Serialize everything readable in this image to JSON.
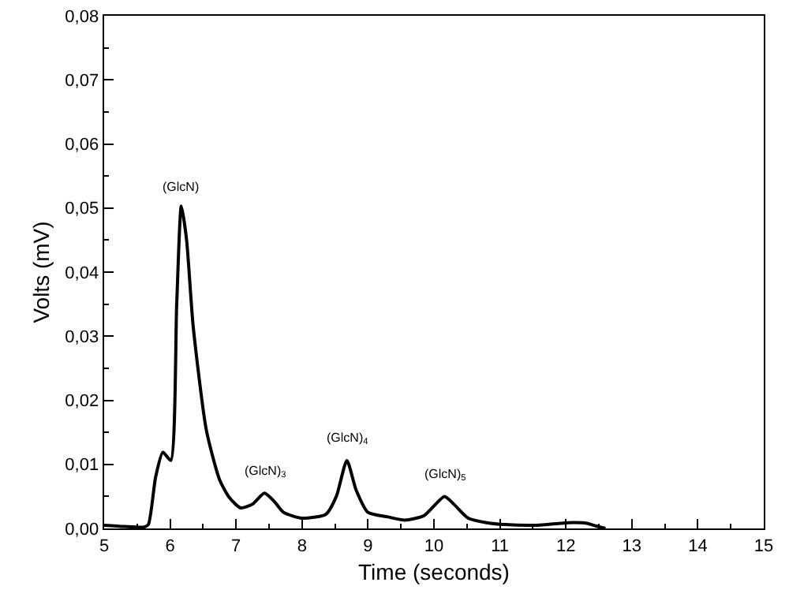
{
  "chart_data": {
    "type": "line",
    "xlabel": "Time (seconds)",
    "ylabel": "Volts (mV)",
    "x": [
      5.0,
      5.3,
      5.6,
      5.67,
      5.78,
      5.89,
      6.01,
      6.1,
      6.17,
      6.25,
      6.35,
      6.55,
      6.75,
      6.9,
      7.07,
      7.25,
      7.43,
      7.58,
      7.72,
      8.0,
      8.36,
      8.52,
      8.68,
      8.82,
      9.0,
      9.3,
      9.56,
      9.85,
      10.16,
      10.3,
      10.52,
      10.8,
      11.08,
      11.56,
      12.04,
      12.32,
      12.45,
      12.6
    ],
    "series": [
      {
        "color": "#000000",
        "values": [
          0.0005,
          0.0003,
          0.0002,
          0.0006,
          0.008,
          0.0119,
          0.0106,
          0.035,
          0.0503,
          0.045,
          0.0315,
          0.0153,
          0.0076,
          0.0048,
          0.0032,
          0.0038,
          0.0055,
          0.0042,
          0.0025,
          0.0016,
          0.0022,
          0.005,
          0.0106,
          0.006,
          0.0025,
          0.0018,
          0.0013,
          0.002,
          0.005,
          0.0038,
          0.0016,
          0.0009,
          0.0006,
          0.0005,
          0.0009,
          0.0008,
          0.0004,
          0.0
        ]
      }
    ],
    "xlim": [
      5,
      15
    ],
    "xticks": [
      5,
      6,
      7,
      8,
      9,
      10,
      11,
      12,
      13,
      14,
      15
    ],
    "ylim": [
      0,
      0.08
    ],
    "yticks": [
      {
        "value": 0,
        "label": "0,00"
      },
      {
        "value": 0.01,
        "label": "0,01"
      },
      {
        "value": 0.02,
        "label": "0,02"
      },
      {
        "value": 0.03,
        "label": "0,03"
      },
      {
        "value": 0.04,
        "label": "0,04"
      },
      {
        "value": 0.05,
        "label": "0,05"
      },
      {
        "value": 0.06,
        "label": "0,06"
      },
      {
        "value": 0.07,
        "label": "0,07"
      },
      {
        "value": 0.08,
        "label": "0,08"
      }
    ],
    "grid": false,
    "marker": "none",
    "line_style": "solid",
    "annotations": [
      {
        "text": "(GlcN)",
        "x": 6.17,
        "y": 0.0503
      },
      {
        "text": "(GlcN)$_{3}$",
        "x": 7.43,
        "y": 0.0055
      },
      {
        "text": "(GlcN)$_{4}$",
        "x": 8.68,
        "y": 0.0106
      },
      {
        "text": "(GlcN)$_{5}$",
        "x": 10.16,
        "y": 0.005
      }
    ]
  }
}
